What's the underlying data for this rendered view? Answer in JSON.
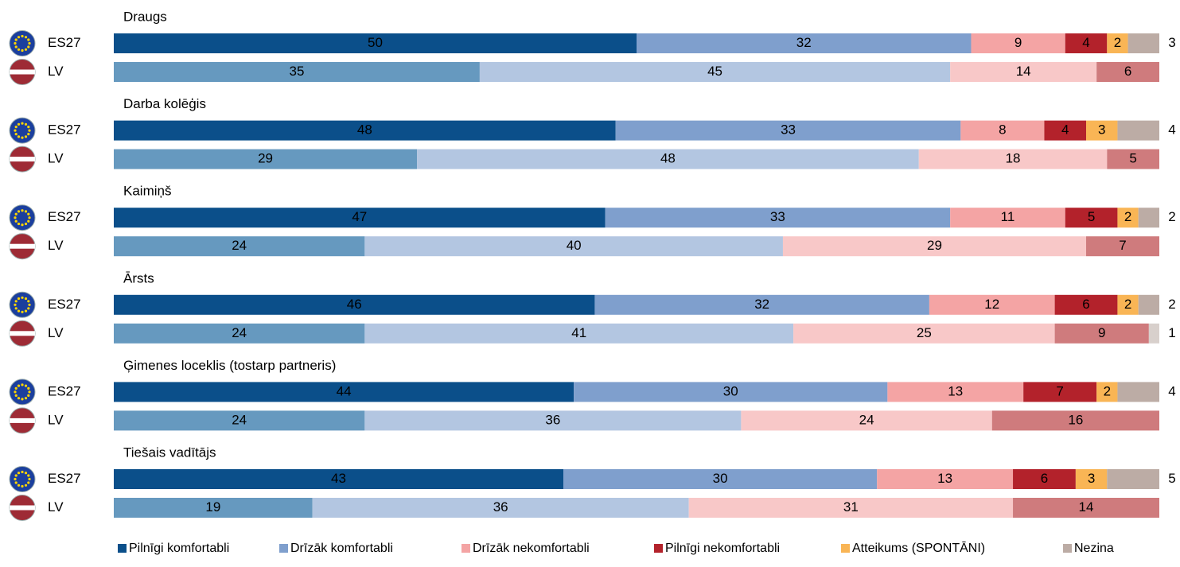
{
  "chart_data": {
    "type": "stacked_bar",
    "series": [
      {
        "name": "Pilnīgi komfortabli",
        "color": "#0b4f8a",
        "light_color": "#6699bf"
      },
      {
        "name": "Drīzāk komfortabli",
        "color": "#7f9fcd",
        "light_color": "#b3c6e1"
      },
      {
        "name": "Drīzāk nekomfortabli",
        "color": "#f4a4a4",
        "light_color": "#f8c8c8"
      },
      {
        "name": "Pilnīgi nekomfortabli",
        "color": "#b3222b",
        "light_color": "#cf7b7d"
      },
      {
        "name": "Atteikums (SPONTĀNI)",
        "color": "#f9b555",
        "light_color": "#fbd39a"
      },
      {
        "name": "Nezina",
        "color": "#bcaca5",
        "light_color": "#d8d0cc"
      }
    ],
    "groups": [
      {
        "label": "Draugs",
        "rows": [
          {
            "name": "ES27",
            "values": [
              50,
              32,
              9,
              4,
              2,
              3
            ]
          },
          {
            "name": "LV",
            "values": [
              35,
              45,
              14,
              6,
              null,
              null
            ]
          }
        ]
      },
      {
        "label": "Darba kolēģis",
        "rows": [
          {
            "name": "ES27",
            "values": [
              48,
              33,
              8,
              4,
              3,
              4
            ]
          },
          {
            "name": "LV",
            "values": [
              29,
              48,
              18,
              5,
              null,
              null
            ]
          }
        ]
      },
      {
        "label": "Kaimiņš",
        "rows": [
          {
            "name": "ES27",
            "values": [
              47,
              33,
              11,
              5,
              2,
              2
            ]
          },
          {
            "name": "LV",
            "values": [
              24,
              40,
              29,
              7,
              null,
              null
            ]
          }
        ]
      },
      {
        "label": "Ārsts",
        "rows": [
          {
            "name": "ES27",
            "values": [
              46,
              32,
              12,
              6,
              2,
              2
            ]
          },
          {
            "name": "LV",
            "values": [
              24,
              41,
              25,
              9,
              null,
              1
            ]
          }
        ]
      },
      {
        "label": "Ģimenes loceklis (tostarp partneris)",
        "rows": [
          {
            "name": "ES27",
            "values": [
              44,
              30,
              13,
              7,
              2,
              4
            ]
          },
          {
            "name": "LV",
            "values": [
              24,
              36,
              24,
              16,
              null,
              null
            ]
          }
        ]
      },
      {
        "label": "Tiešais vadītājs",
        "rows": [
          {
            "name": "ES27",
            "values": [
              43,
              30,
              13,
              6,
              3,
              5
            ]
          },
          {
            "name": "LV",
            "values": [
              19,
              36,
              31,
              14,
              null,
              null
            ]
          }
        ]
      }
    ]
  }
}
